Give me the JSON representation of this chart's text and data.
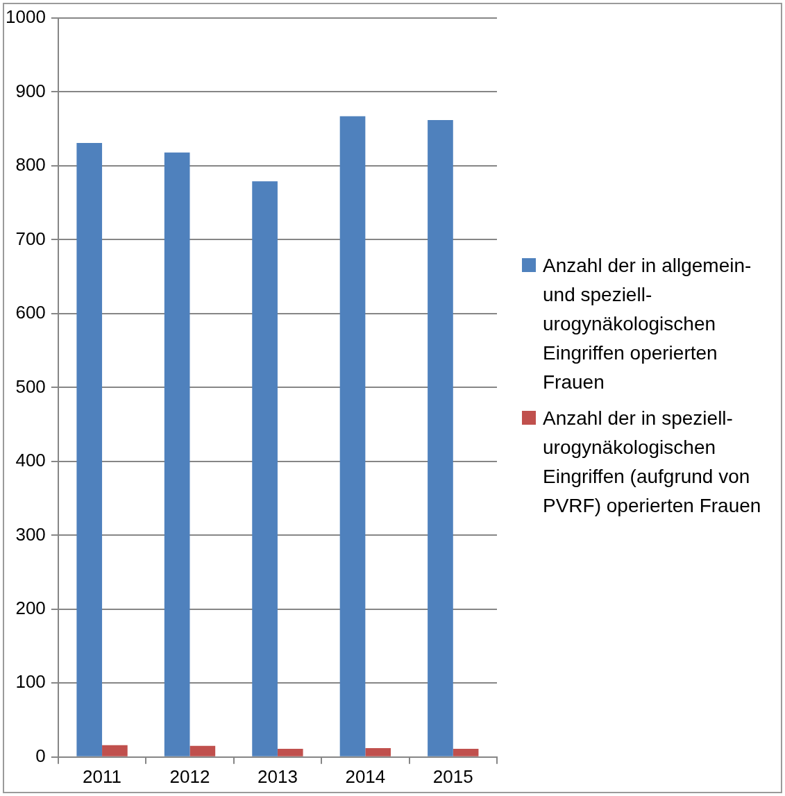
{
  "chart_data": {
    "type": "bar",
    "categories": [
      "2011",
      "2012",
      "2013",
      "2014",
      "2015"
    ],
    "series": [
      {
        "name": "Anzahl der in allgemein-und speziell-urogynäkologischen Eingriffen operierten Frauen",
        "color": "#4f81bd",
        "values": [
          831,
          818,
          779,
          867,
          862
        ]
      },
      {
        "name": "Anzahl der in speziell-urogynäkologischen Eingriffen (aufgrund von PVRF) operierten Frauen",
        "color": "#c0504d",
        "values": [
          16,
          15,
          11,
          12,
          11
        ]
      }
    ],
    "ylim": [
      0,
      1000
    ],
    "yticks": [
      0,
      100,
      200,
      300,
      400,
      500,
      600,
      700,
      800,
      900,
      1000
    ],
    "grid": "y",
    "legend": "right"
  }
}
